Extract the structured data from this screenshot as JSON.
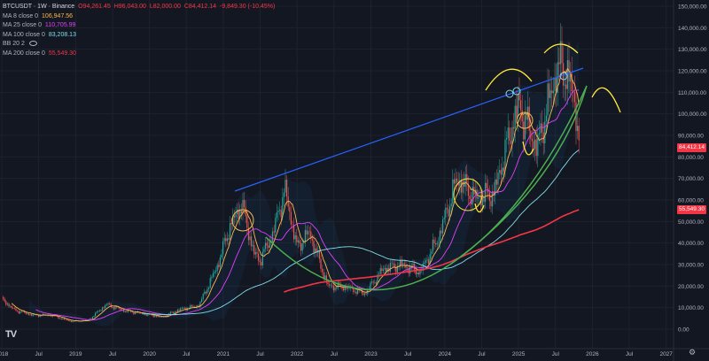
{
  "legend": {
    "symbol": "BTCUSDT",
    "interval": "1W",
    "exchange": "Binance",
    "ohlc": {
      "open": "O94,261.45",
      "high": "H96,043.00",
      "low": "L82,000.00",
      "close": "C84,412.14",
      "change": "-9,849.30 (-10.45%)"
    },
    "indicators": [
      {
        "label": "MA 8 close 0",
        "value": "106,947.56",
        "color": "#ffb74d"
      },
      {
        "label": "MA 25 close 0",
        "value": "110,705.99",
        "color": "#e040fb"
      },
      {
        "label": "MA 100 close 0",
        "value": "83,208.13",
        "color": "#80deea"
      },
      {
        "label": "BB 20 2",
        "value": "",
        "color": "#b2b5be"
      },
      {
        "label": "MA 200 close 0",
        "value": "55,549.30",
        "color": "#f23645"
      }
    ]
  },
  "price_axis": {
    "ticks": [
      "150,000.00",
      "140,000.00",
      "130,000.00",
      "120,000.00",
      "110,000.00",
      "100,000.00",
      "90,000.00",
      "80,000.00",
      "70,000.00",
      "60,000.00",
      "50,000.00",
      "40,000.00",
      "30,000.00",
      "20,000.00",
      "10,000.00",
      "0.00"
    ],
    "badges": [
      {
        "text": "84,412.14",
        "value": 84412.14,
        "color": "#f23645"
      },
      {
        "text": "55,549.30",
        "value": 55549.3,
        "color": "#f23645"
      }
    ]
  },
  "time_axis": {
    "ticks": [
      "2018",
      "Jul",
      "2019",
      "Jul",
      "2020",
      "Jul",
      "2021",
      "Jul",
      "2022",
      "Jul",
      "2023",
      "Jul",
      "2024",
      "Jul",
      "2025",
      "Jul",
      "2026",
      "Jul",
      "2027"
    ]
  },
  "colors": {
    "background": "#131722",
    "up": "#26a69a",
    "down": "#ef5350",
    "ma8": "#ffb74d",
    "ma25": "#e040fb",
    "ma100": "#80deea",
    "ma200": "#f23645",
    "trendline": "#2962ff",
    "curve": "#4caf50",
    "annot": "#ffeb3b"
  },
  "chart_data": {
    "type": "candlestick",
    "title": "",
    "y_range": [
      0,
      150000
    ],
    "x_range": [
      "2018-01",
      "2027-01"
    ],
    "weekly_close_path": [
      [
        "2018-01",
        14000
      ],
      [
        "2018-03",
        9000
      ],
      [
        "2018-06",
        6500
      ],
      [
        "2018-09",
        6500
      ],
      [
        "2018-12",
        3700
      ],
      [
        "2019-03",
        4000
      ],
      [
        "2019-06",
        11500
      ],
      [
        "2019-09",
        8500
      ],
      [
        "2019-12",
        7200
      ],
      [
        "2020-03",
        5500
      ],
      [
        "2020-06",
        9300
      ],
      [
        "2020-09",
        10800
      ],
      [
        "2020-12",
        29000
      ],
      [
        "2021-02",
        47000
      ],
      [
        "2021-04",
        58000
      ],
      [
        "2021-06",
        35000
      ],
      [
        "2021-07",
        32000
      ],
      [
        "2021-09",
        44000
      ],
      [
        "2021-11",
        65000
      ],
      [
        "2022-01",
        38000
      ],
      [
        "2022-03",
        45000
      ],
      [
        "2022-06",
        20000
      ],
      [
        "2022-09",
        19500
      ],
      [
        "2022-12",
        16500
      ],
      [
        "2023-03",
        28000
      ],
      [
        "2023-06",
        30000
      ],
      [
        "2023-09",
        26500
      ],
      [
        "2023-12",
        42500
      ],
      [
        "2024-03",
        70000
      ],
      [
        "2024-06",
        61000
      ],
      [
        "2024-09",
        63000
      ],
      [
        "2024-12",
        95000
      ],
      [
        "2025-01",
        104000
      ],
      [
        "2025-04",
        84000
      ],
      [
        "2025-07",
        118000
      ],
      [
        "2025-08",
        123000
      ],
      [
        "2025-10",
        109000
      ],
      [
        "2025-11",
        84412
      ]
    ],
    "series": [
      {
        "name": "MA 8 close 0",
        "last": 106947.56
      },
      {
        "name": "MA 25 close 0",
        "last": 110705.99
      },
      {
        "name": "MA 100 close 0",
        "last": 83208.13
      },
      {
        "name": "MA 200 close 0",
        "last": 55549.3
      }
    ]
  }
}
